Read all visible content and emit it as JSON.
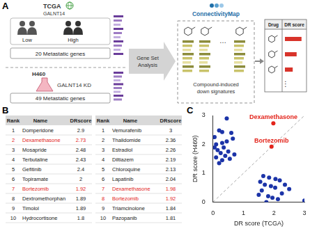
{
  "panel_labels": [
    "A",
    "B",
    "C"
  ],
  "panel_a": {
    "tcga": {
      "name": "TCGA",
      "gene": "GALNT14",
      "groups": [
        "Low",
        "High"
      ],
      "genes": "20 Metastatic genes"
    },
    "cell_line": {
      "name": "H460",
      "condition": "GALNT14 KD",
      "genes": "49 Metastatic genes"
    },
    "analysis": "Gene Set Analysis",
    "cmap": {
      "name": "ConnectivityMap",
      "caption": "Compound-induced down signatures",
      "more": "…"
    },
    "result": {
      "header": [
        "Drug",
        "DR score"
      ],
      "more": "⋮",
      "bar_lengths": [
        0.85,
        0.6,
        0.4
      ]
    }
  },
  "panel_b": {
    "highlight": [
      "Dexamethasone",
      "Bortezomib"
    ],
    "highlight_color": "#e3241b",
    "tables": [
      {
        "header": [
          "Rank",
          "Name",
          "DRscore"
        ],
        "rows": [
          [
            1,
            "Domperidone",
            2.9
          ],
          [
            2,
            "Dexamethasone",
            2.73
          ],
          [
            3,
            "Mosapride",
            2.48
          ],
          [
            4,
            "Terbutaline",
            2.43
          ],
          [
            5,
            "Gefitinib",
            2.4
          ],
          [
            6,
            "Topiramate",
            2
          ],
          [
            7,
            "Bortezomib",
            1.92
          ],
          [
            8,
            "Dextromethorphan",
            1.89
          ],
          [
            9,
            "Timolol",
            1.89
          ],
          [
            10,
            "Hydrocortisone",
            1.8
          ]
        ]
      },
      {
        "header": [
          "Rank",
          "Name",
          "DRscore"
        ],
        "rows": [
          [
            1,
            "Vemurafenib",
            3
          ],
          [
            2,
            "Thalidomide",
            2.36
          ],
          [
            3,
            "Estradiol",
            2.26
          ],
          [
            4,
            "Diltiazem",
            2.19
          ],
          [
            5,
            "Chloroquine",
            2.13
          ],
          [
            6,
            "Lapatinib",
            2.04
          ],
          [
            7,
            "Dexamethasone",
            1.98
          ],
          [
            8,
            "Bortezomib",
            1.92
          ],
          [
            9,
            "Triamcinolone",
            1.84
          ],
          [
            10,
            "Pazopanib",
            1.81
          ]
        ]
      }
    ]
  },
  "chart_data": {
    "type": "scatter",
    "x_label": "DR score (TCGA)",
    "y_label": "DR score (H460)",
    "xlim": [
      0,
      3
    ],
    "ylim": [
      0,
      3
    ],
    "xticks": [
      0,
      1,
      2,
      3
    ],
    "yticks": [
      0,
      1,
      2,
      3
    ],
    "grid": false,
    "series": [
      {
        "color": "#1c34a8",
        "marker": "circle",
        "x": [
          0.45,
          0.2,
          0.3,
          0.6,
          0.1,
          0.05,
          0.35,
          0.15,
          0.5,
          0.25,
          0.7,
          0.4,
          0.1,
          0.55,
          0.3,
          0.2,
          0.65,
          0.45,
          0.05,
          0.3,
          3.0,
          2.36,
          2.26,
          2.19,
          2.13,
          2.04,
          1.84,
          1.81,
          1.7,
          1.6,
          1.55,
          1.95,
          1.75,
          2.5,
          1.65,
          1.5,
          2.05,
          1.9
        ],
        "values": [
          2.9,
          2.48,
          2.43,
          2.4,
          2.0,
          1.89,
          1.89,
          1.8,
          1.75,
          1.7,
          1.65,
          1.6,
          1.55,
          1.5,
          1.45,
          1.35,
          2.2,
          2.1,
          2.25,
          2.05,
          0.05,
          0.6,
          0.3,
          0.75,
          0.1,
          0.5,
          0.85,
          0.2,
          0.6,
          0.4,
          0.7,
          0.15,
          0.0,
          0.45,
          0.9,
          0.25,
          0.8,
          0.55
        ]
      },
      {
        "color": "#e3241b",
        "marker": "circle",
        "x": [
          1.98,
          1.92
        ],
        "values": [
          2.73,
          1.92
        ]
      },
      {
        "type": "line",
        "line_style": "dashed",
        "color": "#aaaaaa",
        "x": [
          0,
          3
        ],
        "values": [
          0,
          3
        ]
      }
    ],
    "annotations": [
      {
        "text": "Dexamethasone",
        "x": 1.98,
        "y": 2.73,
        "color": "#e3241b"
      },
      {
        "text": "Bortezomib",
        "x": 1.92,
        "y": 1.92,
        "color": "#e3241b"
      }
    ]
  }
}
